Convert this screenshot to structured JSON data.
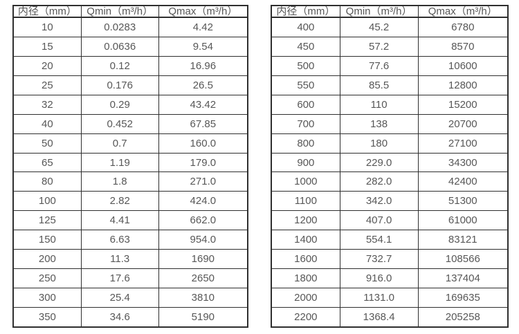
{
  "page": {
    "background_color": "#ffffff",
    "border_color": "#2e2e2e",
    "text_color": "#575757"
  },
  "tables": [
    {
      "name": "diameter-flow-table-small",
      "headers": [
        "内径（mm）",
        "Qmin（m³/h）",
        "Qmax（m³/h）"
      ],
      "rows": [
        [
          "10",
          "0.0283",
          "4.42"
        ],
        [
          "15",
          "0.0636",
          "9.54"
        ],
        [
          "20",
          "0.12",
          "16.96"
        ],
        [
          "25",
          "0.176",
          "26.5"
        ],
        [
          "32",
          "0.29",
          "43.42"
        ],
        [
          "40",
          "0.452",
          "67.85"
        ],
        [
          "50",
          "0.7",
          "160.0"
        ],
        [
          "65",
          "1.19",
          "179.0"
        ],
        [
          "80",
          "1.8",
          "271.0"
        ],
        [
          "100",
          "2.82",
          "424.0"
        ],
        [
          "125",
          "4.41",
          "662.0"
        ],
        [
          "150",
          "6.63",
          "954.0"
        ],
        [
          "200",
          "11.3",
          "1690"
        ],
        [
          "250",
          "17.6",
          "2650"
        ],
        [
          "300",
          "25.4",
          "3810"
        ],
        [
          "350",
          "34.6",
          "5190"
        ]
      ]
    },
    {
      "name": "diameter-flow-table-large",
      "headers": [
        "内径（mm）",
        "Qmin（m³/h）",
        "Qmax（m³/h）"
      ],
      "rows": [
        [
          "400",
          "45.2",
          "6780"
        ],
        [
          "450",
          "57.2",
          "8570"
        ],
        [
          "500",
          "77.6",
          "10600"
        ],
        [
          "550",
          "85.5",
          "12800"
        ],
        [
          "600",
          "110",
          "15200"
        ],
        [
          "700",
          "138",
          "20700"
        ],
        [
          "800",
          "180",
          "27100"
        ],
        [
          "900",
          "229.0",
          "34300"
        ],
        [
          "1000",
          "282.0",
          "42400"
        ],
        [
          "1100",
          "342.0",
          "51300"
        ],
        [
          "1200",
          "407.0",
          "61000"
        ],
        [
          "1400",
          "554.1",
          "83121"
        ],
        [
          "1600",
          "732.7",
          "108566"
        ],
        [
          "1800",
          "916.0",
          "137404"
        ],
        [
          "2000",
          "1131.0",
          "169635"
        ],
        [
          "2200",
          "1368.4",
          "205258"
        ]
      ]
    }
  ]
}
